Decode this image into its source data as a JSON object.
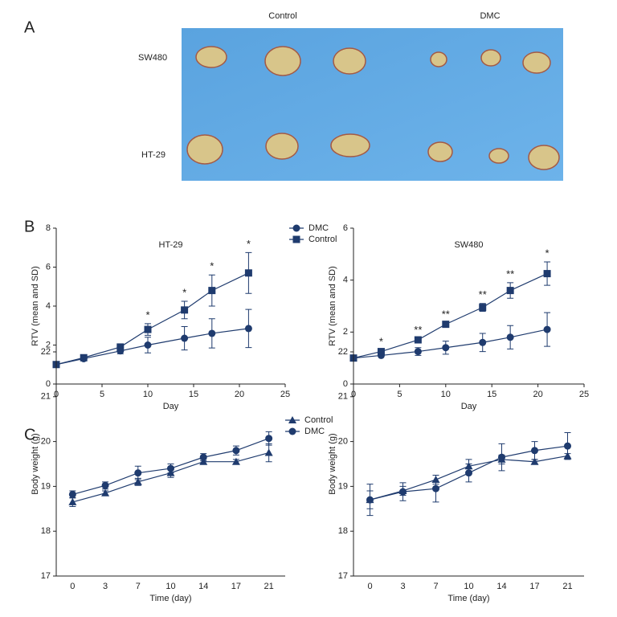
{
  "panel_labels": [
    "A",
    "B",
    "C"
  ],
  "photo": {
    "column_labels": [
      "Control",
      "DMC"
    ],
    "row_labels": [
      "SW480",
      "HT-29"
    ]
  },
  "chart_data": [
    {
      "type": "line",
      "title": "HT-29",
      "x_label": "Day",
      "y_label": "RTV (mean and SD)",
      "x": [
        0,
        3,
        7,
        10,
        14,
        17,
        21
      ],
      "xlim": [
        0,
        25
      ],
      "xticks": [
        0,
        5,
        10,
        15,
        20,
        25
      ],
      "ylim": [
        0,
        8
      ],
      "yticks": [
        0,
        2,
        4,
        6,
        8
      ],
      "series": [
        {
          "name": "DMC",
          "color": "#1f3b6e",
          "marker": "circle",
          "values": [
            1,
            1.3,
            1.7,
            2.0,
            2.35,
            2.6,
            2.85
          ],
          "errors": [
            0,
            0,
            0.15,
            0.4,
            0.6,
            0.75,
            0.98
          ]
        },
        {
          "name": "Control",
          "color": "#1f3b6e",
          "marker": "square",
          "values": [
            1,
            1.35,
            1.9,
            2.8,
            3.8,
            4.8,
            5.7
          ],
          "errors": [
            0,
            0,
            0.1,
            0.3,
            0.45,
            0.8,
            1.05
          ]
        }
      ],
      "annotations": [
        {
          "x": 10,
          "text": "*"
        },
        {
          "x": 14,
          "text": "*"
        },
        {
          "x": 17,
          "text": "*"
        },
        {
          "x": 21,
          "text": "*"
        }
      ]
    },
    {
      "type": "line",
      "title": "SW480",
      "x_label": "Day",
      "y_label": "RTV (mean and SD)",
      "x": [
        0,
        3,
        7,
        10,
        14,
        17,
        21
      ],
      "xlim": [
        0,
        25
      ],
      "xticks": [
        0,
        5,
        10,
        15,
        20,
        25
      ],
      "ylim": [
        0,
        6
      ],
      "yticks": [
        0,
        2,
        4,
        6
      ],
      "series": [
        {
          "color": "#1f3b6e",
          "marker": "circle",
          "values": [
            1,
            1.1,
            1.25,
            1.4,
            1.6,
            1.8,
            2.1
          ],
          "errors": [
            0,
            0.05,
            0.15,
            0.25,
            0.35,
            0.45,
            0.65
          ]
        },
        {
          "color": "#1f3b6e",
          "marker": "square",
          "values": [
            1,
            1.25,
            1.7,
            2.3,
            2.95,
            3.6,
            4.25
          ],
          "errors": [
            0,
            0.05,
            0.05,
            0.05,
            0.15,
            0.3,
            0.45
          ]
        }
      ],
      "annotations": [
        {
          "x": 3,
          "text": "*"
        },
        {
          "x": 7,
          "text": "**"
        },
        {
          "x": 10,
          "text": "**"
        },
        {
          "x": 14,
          "text": "**"
        },
        {
          "x": 17,
          "text": "**"
        },
        {
          "x": 21,
          "text": "*"
        }
      ]
    },
    {
      "type": "line",
      "x_label": "Time (day)",
      "y_label": "Body weight (g)",
      "categories": [
        "0",
        "3",
        "7",
        "10",
        "14",
        "17",
        "21"
      ],
      "ylim": [
        17,
        22
      ],
      "yticks": [
        17,
        18,
        19,
        20,
        21,
        22
      ],
      "series": [
        {
          "name": "Control",
          "color": "#1f3b6e",
          "marker": "triangle",
          "values": [
            18.65,
            18.85,
            19.1,
            19.3,
            19.55,
            19.55,
            19.75
          ],
          "errors": [
            0.1,
            0.05,
            0.08,
            0.1,
            0.05,
            0.05,
            0.2
          ]
        },
        {
          "name": "DMC",
          "color": "#1f3b6e",
          "marker": "circle",
          "values": [
            18.82,
            19.02,
            19.3,
            19.4,
            19.65,
            19.8,
            20.07
          ],
          "errors": [
            0.08,
            0.08,
            0.15,
            0.1,
            0.08,
            0.1,
            0.15
          ]
        }
      ]
    },
    {
      "type": "line",
      "x_label": "Time (day)",
      "y_label": "Body weight (g)",
      "categories": [
        "0",
        "3",
        "7",
        "10",
        "14",
        "17",
        "21"
      ],
      "ylim": [
        17,
        22
      ],
      "yticks": [
        17,
        18,
        19,
        20,
        21,
        22
      ],
      "series": [
        {
          "color": "#1f3b6e",
          "marker": "triangle",
          "values": [
            18.7,
            18.9,
            19.15,
            19.45,
            19.6,
            19.55,
            19.68
          ],
          "errors": [
            0.2,
            0.1,
            0.1,
            0.15,
            0.1,
            0.05,
            0.05
          ]
        },
        {
          "color": "#1f3b6e",
          "marker": "circle",
          "values": [
            18.7,
            18.88,
            18.95,
            19.3,
            19.65,
            19.8,
            19.9
          ],
          "errors": [
            0.35,
            0.2,
            0.3,
            0.2,
            0.3,
            0.2,
            0.3
          ]
        }
      ]
    }
  ]
}
